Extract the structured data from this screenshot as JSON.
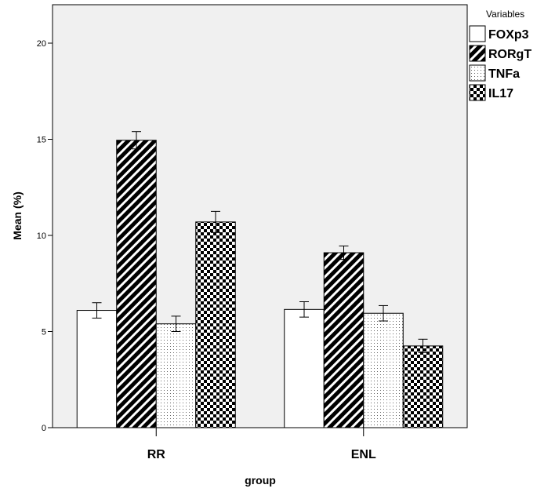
{
  "chart_data": {
    "type": "bar",
    "categories": [
      "RR",
      "ENL"
    ],
    "series": [
      {
        "name": "FOXp3",
        "values": [
          6.1,
          6.15
        ],
        "errors": [
          0.4,
          0.4
        ],
        "pattern": "white"
      },
      {
        "name": "RORgT",
        "values": [
          14.95,
          9.1
        ],
        "errors": [
          0.45,
          0.35
        ],
        "pattern": "diagonal"
      },
      {
        "name": "TNFa",
        "values": [
          5.4,
          5.95
        ],
        "errors": [
          0.4,
          0.4
        ],
        "pattern": "dots"
      },
      {
        "name": "IL17",
        "values": [
          10.7,
          4.25
        ],
        "errors": [
          0.55,
          0.35
        ],
        "pattern": "checker"
      }
    ],
    "xlabel": "group",
    "ylabel": "Mean (%)",
    "ylim": [
      0,
      22
    ],
    "yticks": [
      0,
      5,
      10,
      15,
      20
    ],
    "legend_title": "Variables",
    "legend_position": "top-right",
    "grid": false,
    "plot_background": "#f0f0f0"
  }
}
